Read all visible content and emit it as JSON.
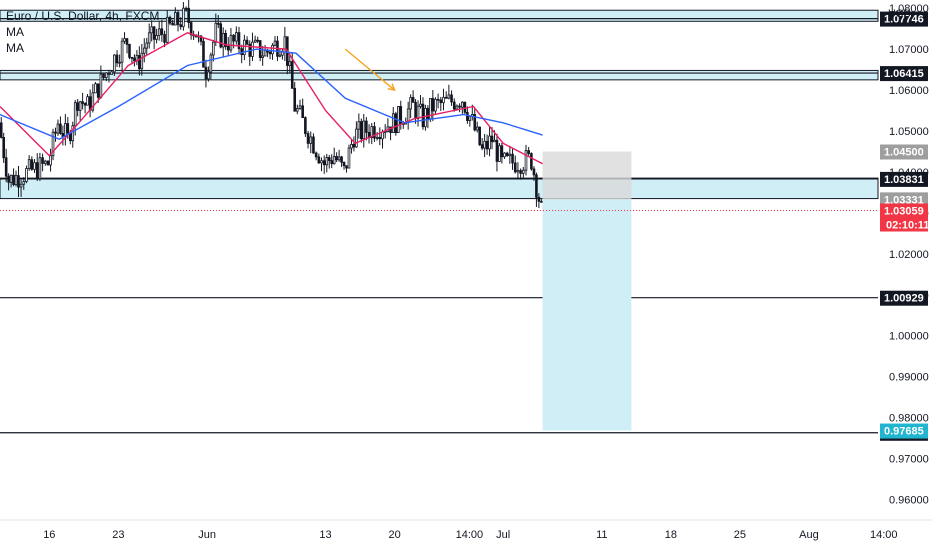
{
  "header": {
    "title": "Euro / U.S. Dollar, 4h, FXCM",
    "indicator_1": "MA",
    "indicator_2": "MA",
    "currency": "USD"
  },
  "colors": {
    "candle": "#131722",
    "ma_fast": "#e91e63",
    "ma_slow": "#2962ff",
    "zone_fill": "#cfeef6",
    "target_fill": "#cfeef6",
    "stop_fill": "#d9d9d9",
    "arrow": "#f7a21b",
    "price_red": "#f23645"
  },
  "chart_data": {
    "type": "candlestick",
    "instrument": "Euro / U.S. Dollar",
    "timeframe": "4h",
    "y_axis": {
      "range": [
        0.955,
        1.082
      ],
      "ticks": [
        "1.08000",
        "1.07000",
        "1.06000",
        "1.05000",
        "1.04000",
        "1.03000",
        "1.02000",
        "1.01000",
        "1.00000",
        "0.99000",
        "0.98000",
        "0.97000",
        "0.96000"
      ],
      "tick_values": [
        1.08,
        1.07,
        1.06,
        1.05,
        1.04,
        1.03,
        1.02,
        1.01,
        1.0,
        0.99,
        0.98,
        0.97,
        0.96
      ]
    },
    "x_axis": {
      "labels": [
        "16",
        "23",
        "Jun",
        "13",
        "20",
        "14:00",
        "Jul",
        "11",
        "18",
        "25",
        "Aug",
        "14:00"
      ],
      "dates": [
        "2022-05-16",
        "2022-05-23",
        "2022-06-01",
        "2022-06-13",
        "2022-06-20",
        "2022-06-27 14:00",
        "2022-07-01",
        "2022-07-11",
        "2022-07-18",
        "2022-07-25",
        "2022-08-01",
        "2022-08-08 14:00"
      ],
      "range": [
        "2022-05-11",
        "2022-08-08"
      ]
    },
    "ohlc_path": [
      [
        "2022-05-11",
        1.052
      ],
      [
        "2022-05-12",
        1.038
      ],
      [
        "2022-05-13",
        1.039
      ],
      [
        "2022-05-16",
        1.042
      ],
      [
        "2022-05-17",
        1.052
      ],
      [
        "2022-05-18",
        1.048
      ],
      [
        "2022-05-19",
        1.058
      ],
      [
        "2022-05-20",
        1.056
      ],
      [
        "2022-05-23",
        1.069
      ],
      [
        "2022-05-24",
        1.072
      ],
      [
        "2022-05-25",
        1.066
      ],
      [
        "2022-05-26",
        1.072
      ],
      [
        "2022-05-27",
        1.073
      ],
      [
        "2022-05-30",
        1.078
      ],
      [
        "2022-05-31",
        1.074
      ],
      [
        "2022-06-01",
        1.065
      ],
      [
        "2022-06-02",
        1.074
      ],
      [
        "2022-06-03",
        1.072
      ],
      [
        "2022-06-06",
        1.07
      ],
      [
        "2022-06-07",
        1.069
      ],
      [
        "2022-06-08",
        1.071
      ],
      [
        "2022-06-09",
        1.072
      ],
      [
        "2022-06-10",
        1.056
      ],
      [
        "2022-06-13",
        1.042
      ],
      [
        "2022-06-14",
        1.044
      ],
      [
        "2022-06-15",
        1.04
      ],
      [
        "2022-06-16",
        1.049
      ],
      [
        "2022-06-17",
        1.05
      ],
      [
        "2022-06-20",
        1.052
      ],
      [
        "2022-06-21",
        1.054
      ],
      [
        "2022-06-22",
        1.056
      ],
      [
        "2022-06-23",
        1.053
      ],
      [
        "2022-06-24",
        1.056
      ],
      [
        "2022-06-27",
        1.058
      ],
      [
        "2022-06-28",
        1.052
      ],
      [
        "2022-06-29",
        1.045
      ],
      [
        "2022-06-30",
        1.048
      ],
      [
        "2022-07-01",
        1.042
      ],
      [
        "2022-07-04",
        1.043
      ],
      [
        "2022-07-05",
        1.0306
      ]
    ],
    "moving_averages": [
      {
        "name": "MA",
        "color": "#e91e63",
        "values": [
          [
            "2022-05-11",
            1.056
          ],
          [
            "2022-05-16",
            1.044
          ],
          [
            "2022-05-19",
            1.052
          ],
          [
            "2022-05-24",
            1.066
          ],
          [
            "2022-05-30",
            1.074
          ],
          [
            "2022-06-03",
            1.071
          ],
          [
            "2022-06-09",
            1.07
          ],
          [
            "2022-06-13",
            1.055
          ],
          [
            "2022-06-16",
            1.047
          ],
          [
            "2022-06-22",
            1.053
          ],
          [
            "2022-06-28",
            1.056
          ],
          [
            "2022-07-01",
            1.047
          ],
          [
            "2022-07-05",
            1.042
          ]
        ]
      },
      {
        "name": "MA",
        "color": "#2962ff",
        "values": [
          [
            "2022-05-11",
            1.054
          ],
          [
            "2022-05-17",
            1.048
          ],
          [
            "2022-05-23",
            1.056
          ],
          [
            "2022-05-30",
            1.066
          ],
          [
            "2022-06-06",
            1.07
          ],
          [
            "2022-06-10",
            1.069
          ],
          [
            "2022-06-15",
            1.058
          ],
          [
            "2022-06-21",
            1.052
          ],
          [
            "2022-06-27",
            1.054
          ],
          [
            "2022-07-01",
            1.052
          ],
          [
            "2022-07-05",
            1.049
          ]
        ]
      }
    ],
    "horizontal_levels": [
      {
        "label": "1.07746",
        "value": 1.07746,
        "zone": [
          1.0768,
          1.0795
        ]
      },
      {
        "label": "1.06415",
        "value": 1.06415,
        "zone": [
          1.0625,
          1.0648
        ]
      },
      {
        "label": "1.03831",
        "value": 1.03831,
        "zone": [
          1.0335,
          1.0385
        ]
      },
      {
        "label": "1.00929",
        "value": 1.00929
      },
      {
        "label": "0.97630",
        "value": 0.9763
      }
    ],
    "position": {
      "type": "short",
      "start_date": "2022-07-05",
      "end_date": "2022-07-14",
      "stop": 1.045,
      "entry": 1.03331,
      "target": 0.97685,
      "stop_label": "1.04500",
      "entry_label": "1.03331",
      "target_label": "0.97685"
    },
    "current_price": {
      "value": 1.03059,
      "label": "1.03059",
      "countdown": "02:10:11"
    },
    "annotation": {
      "type": "arrow",
      "from": [
        "2022-06-15",
        1.07
      ],
      "to": [
        "2022-06-20",
        1.06
      ]
    }
  }
}
